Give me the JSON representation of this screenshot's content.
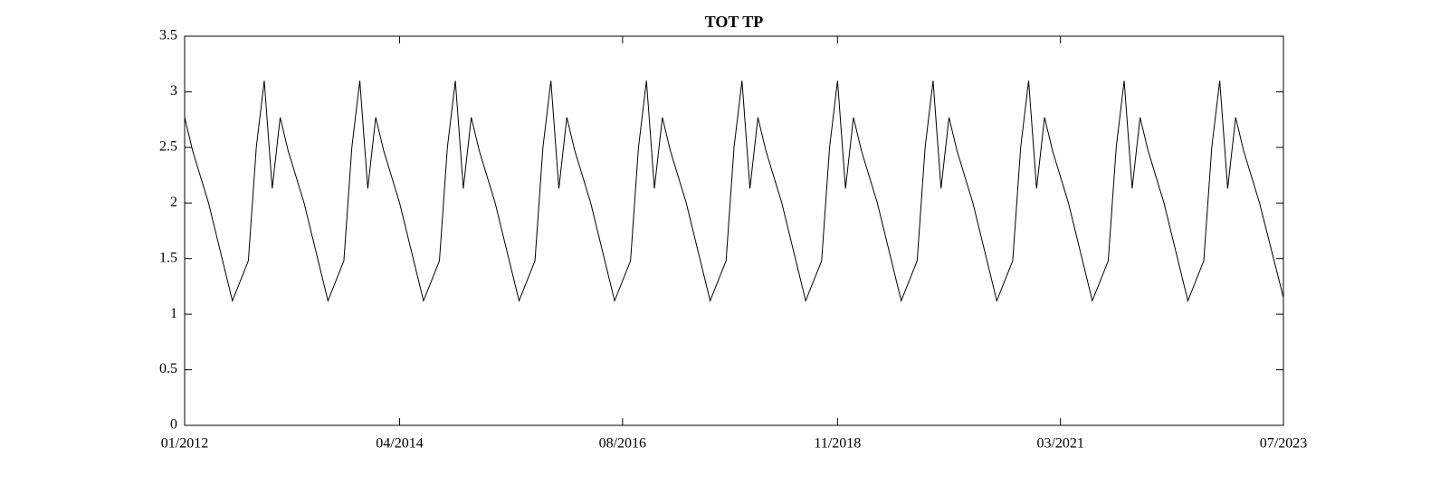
{
  "chart_data": {
    "type": "line",
    "title": "TOT TP",
    "x": [
      "2012-01",
      "2012-02",
      "2012-04",
      "2012-07",
      "2012-09",
      "2012-10",
      "2012-11",
      "2012-12",
      "2013-01",
      "2013-02",
      "2013-04",
      "2013-07",
      "2013-09",
      "2013-10",
      "2013-11",
      "2013-12",
      "2014-01",
      "2014-02",
      "2014-04",
      "2014-07",
      "2014-09",
      "2014-10",
      "2014-11",
      "2014-12",
      "2015-01",
      "2015-02",
      "2015-04",
      "2015-07",
      "2015-09",
      "2015-10",
      "2015-11",
      "2015-12",
      "2016-01",
      "2016-02",
      "2016-04",
      "2016-07",
      "2016-09",
      "2016-10",
      "2016-11",
      "2016-12",
      "2017-01",
      "2017-02",
      "2017-04",
      "2017-07",
      "2017-09",
      "2017-10",
      "2017-11",
      "2017-12",
      "2018-01",
      "2018-02",
      "2018-04",
      "2018-07",
      "2018-09",
      "2018-10",
      "2018-11",
      "2018-12",
      "2019-01",
      "2019-02",
      "2019-04",
      "2019-07",
      "2019-09",
      "2019-10",
      "2019-11",
      "2019-12",
      "2020-01",
      "2020-02",
      "2020-04",
      "2020-07",
      "2020-09",
      "2020-10",
      "2020-11",
      "2020-12",
      "2021-01",
      "2021-02",
      "2021-04",
      "2021-07",
      "2021-09",
      "2021-10",
      "2021-11",
      "2021-12",
      "2022-01",
      "2022-02",
      "2022-04",
      "2022-07",
      "2022-09",
      "2022-10",
      "2022-11",
      "2022-12",
      "2023-01",
      "2023-02",
      "2023-04",
      "2023-07"
    ],
    "series": [
      {
        "color": "#000000",
        "values": [
          2.77,
          2.47,
          2.0,
          1.12,
          1.48,
          2.5,
          3.1,
          2.13,
          2.77,
          2.47,
          2.0,
          1.12,
          1.48,
          2.5,
          3.1,
          2.13,
          2.77,
          2.47,
          2.0,
          1.12,
          1.48,
          2.5,
          3.1,
          2.13,
          2.77,
          2.47,
          2.0,
          1.12,
          1.48,
          2.5,
          3.1,
          2.13,
          2.77,
          2.47,
          2.0,
          1.12,
          1.48,
          2.5,
          3.1,
          2.13,
          2.77,
          2.47,
          2.0,
          1.12,
          1.48,
          2.5,
          3.1,
          2.13,
          2.77,
          2.47,
          2.0,
          1.12,
          1.48,
          2.5,
          3.1,
          2.13,
          2.77,
          2.47,
          2.0,
          1.12,
          1.48,
          2.5,
          3.1,
          2.13,
          2.77,
          2.47,
          2.0,
          1.12,
          1.48,
          2.5,
          3.1,
          2.13,
          2.77,
          2.47,
          2.0,
          1.12,
          1.48,
          2.5,
          3.1,
          2.13,
          2.77,
          2.47,
          2.0,
          1.12,
          1.48,
          2.5,
          3.1,
          2.13,
          2.77,
          2.47,
          2.0,
          1.15
        ]
      }
    ],
    "xlim": [
      "2012-01",
      "2023-07"
    ],
    "xticks": [
      {
        "value": "2012-01",
        "label": "01/2012"
      },
      {
        "value": "2014-04",
        "label": "04/2014"
      },
      {
        "value": "2016-08",
        "label": "08/2016"
      },
      {
        "value": "2018-11",
        "label": "11/2018"
      },
      {
        "value": "2021-03",
        "label": "03/2021"
      },
      {
        "value": "2023-07",
        "label": "07/2023"
      }
    ],
    "ylim": [
      0,
      3.5
    ],
    "yticks": [
      0,
      0.5,
      1,
      1.5,
      2,
      2.5,
      3,
      3.5
    ],
    "grid": false
  }
}
